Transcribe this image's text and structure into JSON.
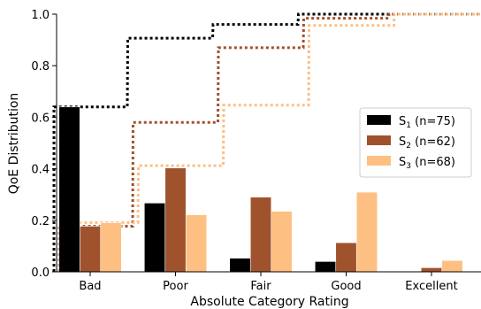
{
  "chart_data": {
    "type": "bar",
    "xlabel": "Absolute Category Rating",
    "ylabel": "QoE Distribution",
    "ylim": [
      0,
      1.0
    ],
    "yticks": [
      0.0,
      0.2,
      0.4,
      0.6,
      0.8,
      1.0
    ],
    "categories": [
      "Bad",
      "Poor",
      "Fair",
      "Good",
      "Excellent"
    ],
    "legend_position": "center-right",
    "grid": false,
    "series": [
      {
        "name": "S",
        "subscript": "1",
        "n_label": " (n=75)",
        "color": "#000000",
        "values": [
          0.64,
          0.267,
          0.053,
          0.04,
          0.0
        ],
        "cumulative": [
          0.64,
          0.907,
          0.96,
          1.0,
          1.0
        ]
      },
      {
        "name": "S",
        "subscript": "2",
        "n_label": " (n=62)",
        "color": "#a0522d",
        "values": [
          0.177,
          0.403,
          0.29,
          0.113,
          0.016
        ],
        "cumulative": [
          0.177,
          0.58,
          0.87,
          0.984,
          1.0
        ]
      },
      {
        "name": "S",
        "subscript": "3",
        "n_label": " (n=68)",
        "color": "#fdbf82",
        "values": [
          0.191,
          0.221,
          0.235,
          0.309,
          0.044
        ],
        "cumulative": [
          0.191,
          0.412,
          0.647,
          0.956,
          1.0
        ]
      }
    ]
  }
}
